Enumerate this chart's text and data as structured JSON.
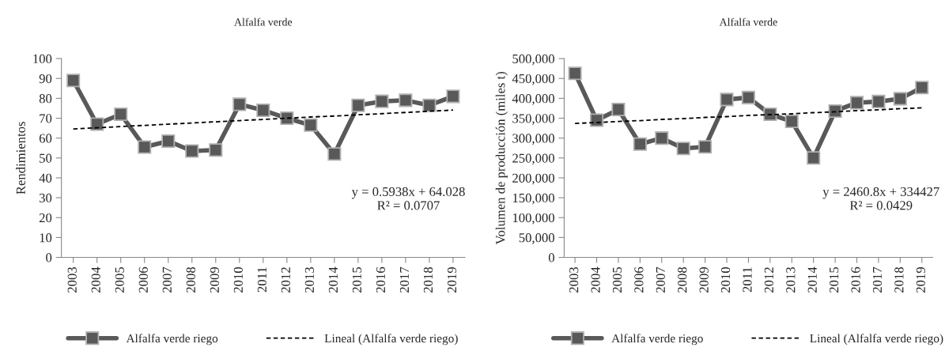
{
  "chart_data": [
    {
      "type": "line",
      "title": "Alfalfa verde",
      "ylabel": "Rendimientos",
      "categories": [
        "2003",
        "2004",
        "2005",
        "2006",
        "2007",
        "2008",
        "2009",
        "2010",
        "2011",
        "2012",
        "2013",
        "2014",
        "2015",
        "2016",
        "2017",
        "2018",
        "2019"
      ],
      "series": [
        {
          "name": "Alfalfa verde riego",
          "color": "#595959",
          "marker": "square",
          "line_style": "solid",
          "values": [
            89,
            67,
            72,
            55.5,
            58.5,
            53.5,
            54,
            77,
            74,
            70,
            66.5,
            52,
            76.5,
            78.5,
            79,
            76.5,
            81
          ]
        },
        {
          "name": "Lineal (Alfalfa verde riego)",
          "color": "#000000",
          "marker": "none",
          "line_style": "dashed",
          "values": [
            64.6,
            65.2,
            65.8,
            66.4,
            67.0,
            67.6,
            68.2,
            68.8,
            69.4,
            70.0,
            70.6,
            71.1,
            71.7,
            72.3,
            72.9,
            73.5,
            74.1
          ]
        }
      ],
      "ylim": [
        0,
        100
      ],
      "yticks": [
        0,
        10,
        20,
        30,
        40,
        50,
        60,
        70,
        80,
        90,
        100
      ],
      "grid": false,
      "legend": "bottom",
      "annotations": [
        "y = 0.5938x + 64.028\nR² = 0.0707"
      ]
    },
    {
      "type": "line",
      "title": "Alfalfa verde",
      "ylabel": "Volumen de producción (miles t)",
      "categories": [
        "2003",
        "2004",
        "2005",
        "2006",
        "2007",
        "2008",
        "2009",
        "2010",
        "2011",
        "2012",
        "2013",
        "2014",
        "2015",
        "2016",
        "2017",
        "2018",
        "2019"
      ],
      "series": [
        {
          "name": "Alfalfa verde riego",
          "color": "#595959",
          "marker": "square",
          "line_style": "solid",
          "values": [
            463000,
            345000,
            372000,
            285000,
            300000,
            274000,
            278000,
            397000,
            402000,
            360000,
            342000,
            250000,
            368000,
            389000,
            392000,
            399000,
            427000
          ]
        },
        {
          "name": "Lineal (Alfalfa verde riego)",
          "color": "#000000",
          "marker": "none",
          "line_style": "dashed",
          "values": [
            337000,
            339000,
            342000,
            344000,
            347000,
            349000,
            352000,
            354000,
            357000,
            359000,
            361000,
            364000,
            366000,
            369000,
            371000,
            374000,
            376000
          ]
        }
      ],
      "ylim": [
        0,
        500000
      ],
      "yticks": [
        0,
        {
          "value": 50000,
          "label": "50,000"
        },
        {
          "value": 100000,
          "label": "100,000"
        },
        {
          "value": 150000,
          "label": "150,000"
        },
        {
          "value": 200000,
          "label": "200,000"
        },
        {
          "value": 250000,
          "label": "250,000"
        },
        {
          "value": 300000,
          "label": "300,000"
        },
        {
          "value": 350000,
          "label": "350,000"
        },
        {
          "value": 400000,
          "label": "400,000"
        },
        {
          "value": 450000,
          "label": "450,000"
        },
        {
          "value": 500000,
          "label": "500,000"
        }
      ],
      "grid": false,
      "legend": "bottom",
      "annotations": [
        "y = 2460.8x + 334427\nR² = 0.0429"
      ]
    }
  ]
}
